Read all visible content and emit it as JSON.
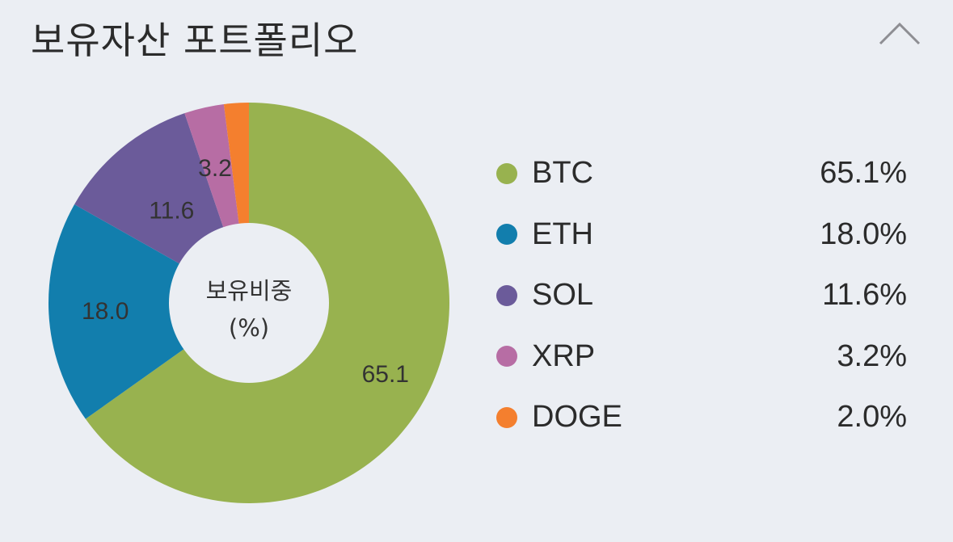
{
  "header": {
    "title": "보유자산 포트폴리오",
    "collapse_icon": "chevron-up-icon"
  },
  "colors": {
    "background": "#ebeef3",
    "BTC": "#98b24f",
    "ETH": "#127ead",
    "SOL": "#6b5b9a",
    "XRP": "#b76da4",
    "DOGE": "#f47f2e"
  },
  "chart_data": {
    "type": "pie",
    "donut": true,
    "center_label": [
      "보유비중",
      "(%)"
    ],
    "categories": [
      "BTC",
      "ETH",
      "SOL",
      "XRP",
      "DOGE"
    ],
    "values": [
      65.1,
      18.0,
      11.6,
      3.2,
      2.0
    ],
    "slice_labels": [
      "65.1",
      "18.0",
      "11.6",
      "3.2",
      ""
    ],
    "legend_position": "right",
    "legend_values": [
      "65.1%",
      "18.0%",
      "11.6%",
      "3.2%",
      "2.0%"
    ]
  }
}
